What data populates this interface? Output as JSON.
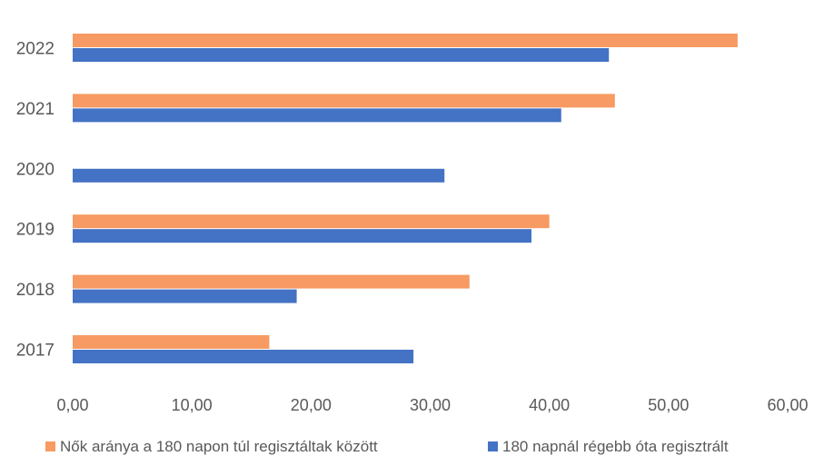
{
  "chart_data": {
    "type": "bar",
    "orientation": "horizontal",
    "categories": [
      "2017",
      "2018",
      "2019",
      "2020",
      "2021",
      "2022"
    ],
    "series": [
      {
        "name": "Nők aránya a 180 napon túl regisztáltak között",
        "color": "#F79A63",
        "values": [
          16.5,
          33.3,
          40.0,
          null,
          45.5,
          55.8
        ]
      },
      {
        "name": "180 napnál régebb óta regisztrált",
        "color": "#4472C4",
        "values": [
          28.6,
          18.8,
          38.5,
          31.2,
          41.0,
          45.0
        ]
      }
    ],
    "xlim": [
      0,
      60
    ],
    "xticks": [
      "0,00",
      "10,00",
      "20,00",
      "30,00",
      "40,00",
      "50,00",
      "60,00"
    ],
    "grid": false,
    "legend": "bottom",
    "title": "",
    "xlabel": "",
    "ylabel": ""
  }
}
